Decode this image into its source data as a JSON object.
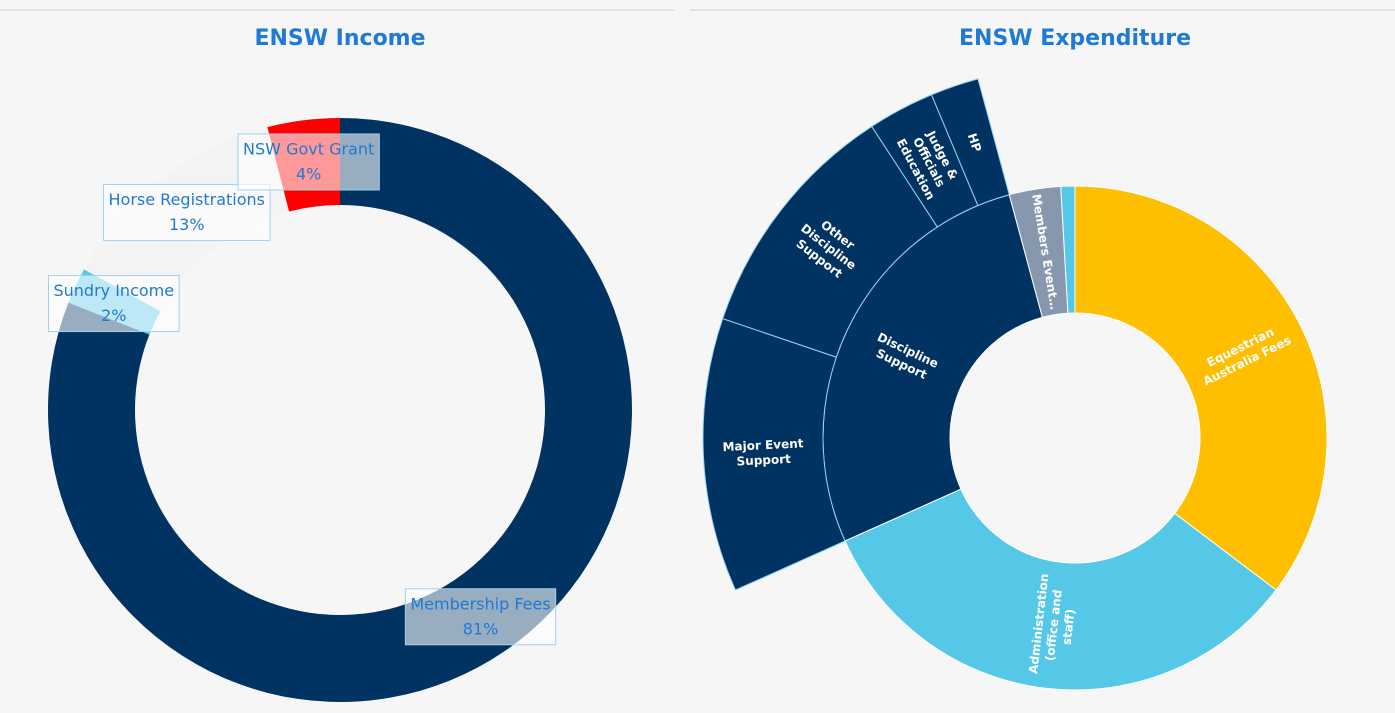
{
  "chart_data": [
    {
      "type": "pie",
      "title": "ENSW Income",
      "categories": [
        "Membership Fees",
        "Sundry Income",
        "Horse Registrations",
        "NSW Govt Grant"
      ],
      "values": [
        81,
        2,
        13,
        4
      ],
      "value_labels": [
        "81%",
        "2%",
        "13%",
        "4%"
      ],
      "colors": [
        "#003362",
        "#5bc8e8",
        "#f3f3f3",
        "#ff0000"
      ]
    },
    {
      "type": "sunburst",
      "title": "ENSW Expenditure",
      "nodes": [
        {
          "name": "Equestrian Australia Fees",
          "value": 35.3,
          "color": "#fdbf00"
        },
        {
          "name": "Administration (office and staff)",
          "value": 33,
          "color": "#55c8e8"
        },
        {
          "name": "Discipline Support",
          "value": 27.5,
          "color": "#003362",
          "children": [
            {
              "name": "Major Event Support",
              "value": 11.9
            },
            {
              "name": "Other Discipline Support",
              "value": 10.6
            },
            {
              "name": "Judge & Officials Education",
              "value": 2.9
            },
            {
              "name": "HP",
              "value": 2.1
            }
          ]
        },
        {
          "name": "Members Event…",
          "value": 3.3,
          "color": "#8797ad"
        },
        {
          "name": null,
          "value": 0.9,
          "color": "#55c8e8"
        }
      ]
    }
  ]
}
